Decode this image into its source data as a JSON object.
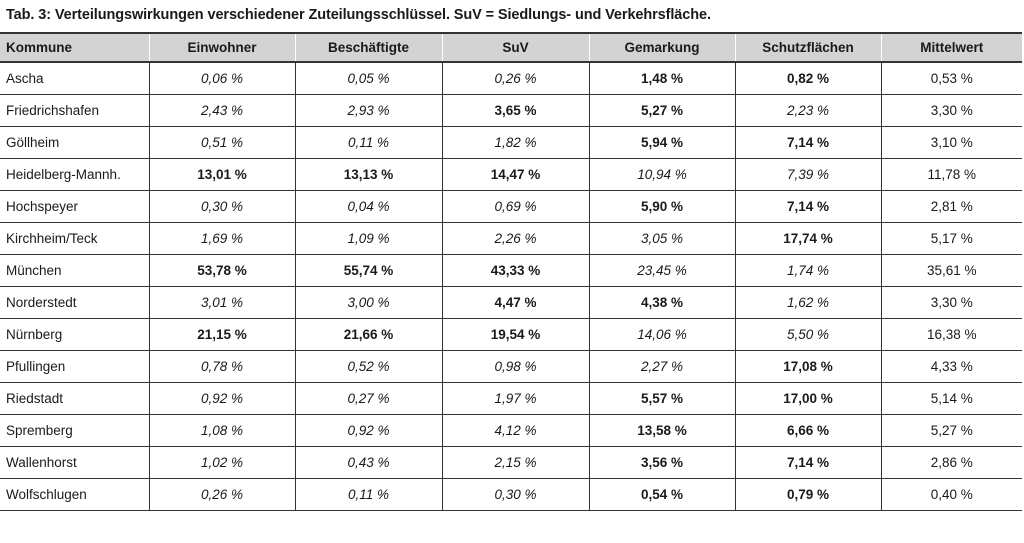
{
  "caption": "Tab. 3: Verteilungswirkungen verschiedener Zuteilungsschlüssel. SuV = Siedlungs- und Verkehrsfläche.",
  "columns": [
    "Kommune",
    "Einwohner",
    "Beschäftigte",
    "SuV",
    "Gemarkung",
    "Schutzflächen",
    "Mittelwert"
  ],
  "rows": [
    {
      "name": "Ascha",
      "values": [
        "0,06 %",
        "0,05 %",
        "0,26 %",
        "1,48 %",
        "0,82 %",
        "0,53 %"
      ],
      "bold": [
        false,
        false,
        false,
        true,
        true,
        false
      ]
    },
    {
      "name": "Friedrichshafen",
      "values": [
        "2,43 %",
        "2,93 %",
        "3,65 %",
        "5,27 %",
        "2,23 %",
        "3,30 %"
      ],
      "bold": [
        false,
        false,
        true,
        true,
        false,
        false
      ]
    },
    {
      "name": "Göllheim",
      "values": [
        "0,51 %",
        "0,11 %",
        "1,82 %",
        "5,94 %",
        "7,14 %",
        "3,10 %"
      ],
      "bold": [
        false,
        false,
        false,
        true,
        true,
        false
      ]
    },
    {
      "name": "Heidelberg-Mannh.",
      "values": [
        "13,01 %",
        "13,13 %",
        "14,47 %",
        "10,94 %",
        "7,39 %",
        "11,78 %"
      ],
      "bold": [
        true,
        true,
        true,
        false,
        false,
        false
      ]
    },
    {
      "name": "Hochspeyer",
      "values": [
        "0,30 %",
        "0,04 %",
        "0,69 %",
        "5,90 %",
        "7,14 %",
        "2,81 %"
      ],
      "bold": [
        false,
        false,
        false,
        true,
        true,
        false
      ]
    },
    {
      "name": "Kirchheim/Teck",
      "values": [
        "1,69 %",
        "1,09 %",
        "2,26 %",
        "3,05 %",
        "17,74 %",
        "5,17 %"
      ],
      "bold": [
        false,
        false,
        false,
        false,
        true,
        false
      ]
    },
    {
      "name": "München",
      "values": [
        "53,78 %",
        "55,74 %",
        "43,33 %",
        "23,45 %",
        "1,74 %",
        "35,61 %"
      ],
      "bold": [
        true,
        true,
        true,
        false,
        false,
        false
      ]
    },
    {
      "name": "Norderstedt",
      "values": [
        "3,01 %",
        "3,00 %",
        "4,47 %",
        "4,38 %",
        "1,62 %",
        "3,30 %"
      ],
      "bold": [
        false,
        false,
        true,
        true,
        false,
        false
      ]
    },
    {
      "name": "Nürnberg",
      "values": [
        "21,15 %",
        "21,66 %",
        "19,54 %",
        "14,06 %",
        "5,50 %",
        "16,38 %"
      ],
      "bold": [
        true,
        true,
        true,
        false,
        false,
        false
      ]
    },
    {
      "name": "Pfullingen",
      "values": [
        "0,78 %",
        "0,52 %",
        "0,98 %",
        "2,27 %",
        "17,08 %",
        "4,33 %"
      ],
      "bold": [
        false,
        false,
        false,
        false,
        true,
        false
      ]
    },
    {
      "name": "Riedstadt",
      "values": [
        "0,92 %",
        "0,27 %",
        "1,97 %",
        "5,57 %",
        "17,00 %",
        "5,14 %"
      ],
      "bold": [
        false,
        false,
        false,
        true,
        true,
        false
      ]
    },
    {
      "name": "Spremberg",
      "values": [
        "1,08 %",
        "0,92 %",
        "4,12 %",
        "13,58 %",
        "6,66 %",
        "5,27 %"
      ],
      "bold": [
        false,
        false,
        false,
        true,
        true,
        false
      ]
    },
    {
      "name": "Wallenhorst",
      "values": [
        "1,02 %",
        "0,43 %",
        "2,15 %",
        "3,56 %",
        "7,14 %",
        "2,86 %"
      ],
      "bold": [
        false,
        false,
        false,
        true,
        true,
        false
      ]
    },
    {
      "name": "Wolfschlugen",
      "values": [
        "0,26 %",
        "0,11 %",
        "0,30 %",
        "0,54 %",
        "0,79 %",
        "0,40 %"
      ],
      "bold": [
        false,
        false,
        false,
        true,
        true,
        false
      ]
    }
  ]
}
